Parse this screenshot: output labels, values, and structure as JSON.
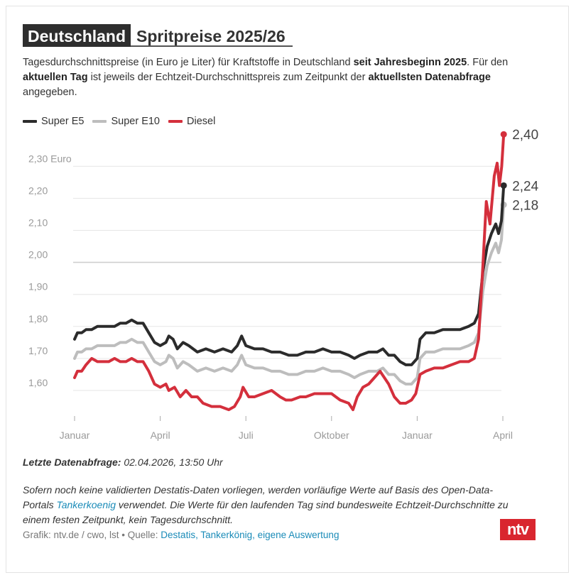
{
  "header": {
    "title_highlight": "Deutschland",
    "title_rest": "Spritpreise 2025/26"
  },
  "subtitle": {
    "p1": "Tagesdurchschnittspreise (in Euro je Liter) für Kraftstoffe in Deutschland ",
    "b1": "seit Jahresbeginn 2025",
    "p2": ". Für den ",
    "b2": "aktuellen Tag",
    "p3": " ist jeweils der Echtzeit-Durchschnittspreis zum Zeitpunkt der ",
    "b3": "aktuellsten Datenabfrage",
    "p4": " angegeben."
  },
  "colors": {
    "e5": "#2b2b2b",
    "e10": "#bdbdbd",
    "diesel": "#d42f3c",
    "grid": "#e6e6e6",
    "baseline": "#cfcfcf"
  },
  "chart_data": {
    "type": "line",
    "x_unit": "months since January 2025",
    "x_ticks": [
      {
        "x": 0,
        "label": "Januar"
      },
      {
        "x": 3,
        "label": "April"
      },
      {
        "x": 6,
        "label": "Juli"
      },
      {
        "x": 9,
        "label": "Oktober"
      },
      {
        "x": 12,
        "label": "Januar"
      },
      {
        "x": 15,
        "label": "April"
      }
    ],
    "y_ticks": [
      {
        "y": 1.6,
        "label": "1,60"
      },
      {
        "y": 1.7,
        "label": "1,70"
      },
      {
        "y": 1.8,
        "label": "1,80"
      },
      {
        "y": 1.9,
        "label": "1,90"
      },
      {
        "y": 2.0,
        "label": "2,00"
      },
      {
        "y": 2.1,
        "label": "2,10"
      },
      {
        "y": 2.2,
        "label": "2,20"
      },
      {
        "y": 2.3,
        "label": "2,30 Euro"
      }
    ],
    "ylim": [
      1.53,
      2.34
    ],
    "xlim": [
      0,
      15.03
    ],
    "series": [
      {
        "name": "Super E5",
        "color": "#2b2b2b",
        "end_label": "2,24",
        "points": [
          [
            0.0,
            1.76
          ],
          [
            0.1,
            1.78
          ],
          [
            0.25,
            1.78
          ],
          [
            0.4,
            1.79
          ],
          [
            0.6,
            1.79
          ],
          [
            0.8,
            1.8
          ],
          [
            1.0,
            1.8
          ],
          [
            1.2,
            1.8
          ],
          [
            1.4,
            1.8
          ],
          [
            1.6,
            1.81
          ],
          [
            1.8,
            1.81
          ],
          [
            2.0,
            1.82
          ],
          [
            2.2,
            1.81
          ],
          [
            2.4,
            1.81
          ],
          [
            2.6,
            1.78
          ],
          [
            2.8,
            1.75
          ],
          [
            3.0,
            1.74
          ],
          [
            3.2,
            1.75
          ],
          [
            3.3,
            1.77
          ],
          [
            3.45,
            1.76
          ],
          [
            3.6,
            1.73
          ],
          [
            3.8,
            1.75
          ],
          [
            4.0,
            1.74
          ],
          [
            4.3,
            1.72
          ],
          [
            4.6,
            1.73
          ],
          [
            4.9,
            1.72
          ],
          [
            5.2,
            1.73
          ],
          [
            5.5,
            1.72
          ],
          [
            5.7,
            1.74
          ],
          [
            5.85,
            1.77
          ],
          [
            6.0,
            1.74
          ],
          [
            6.3,
            1.73
          ],
          [
            6.6,
            1.73
          ],
          [
            6.9,
            1.72
          ],
          [
            7.2,
            1.72
          ],
          [
            7.5,
            1.71
          ],
          [
            7.8,
            1.71
          ],
          [
            8.1,
            1.72
          ],
          [
            8.4,
            1.72
          ],
          [
            8.7,
            1.73
          ],
          [
            9.0,
            1.72
          ],
          [
            9.3,
            1.72
          ],
          [
            9.6,
            1.71
          ],
          [
            9.8,
            1.7
          ],
          [
            10.0,
            1.71
          ],
          [
            10.3,
            1.72
          ],
          [
            10.6,
            1.72
          ],
          [
            10.8,
            1.73
          ],
          [
            11.0,
            1.71
          ],
          [
            11.2,
            1.71
          ],
          [
            11.4,
            1.69
          ],
          [
            11.6,
            1.68
          ],
          [
            11.8,
            1.68
          ],
          [
            12.0,
            1.7
          ],
          [
            12.1,
            1.76
          ],
          [
            12.3,
            1.78
          ],
          [
            12.6,
            1.78
          ],
          [
            12.9,
            1.79
          ],
          [
            13.2,
            1.79
          ],
          [
            13.5,
            1.79
          ],
          [
            13.8,
            1.8
          ],
          [
            14.0,
            1.81
          ],
          [
            14.15,
            1.84
          ],
          [
            14.3,
            1.97
          ],
          [
            14.45,
            2.05
          ],
          [
            14.6,
            2.09
          ],
          [
            14.75,
            2.12
          ],
          [
            14.85,
            2.09
          ],
          [
            14.95,
            2.13
          ],
          [
            15.03,
            2.24
          ]
        ]
      },
      {
        "name": "Super E10",
        "color": "#bdbdbd",
        "end_label": "2,18",
        "points": [
          [
            0.0,
            1.7
          ],
          [
            0.1,
            1.72
          ],
          [
            0.25,
            1.72
          ],
          [
            0.4,
            1.73
          ],
          [
            0.6,
            1.73
          ],
          [
            0.8,
            1.74
          ],
          [
            1.0,
            1.74
          ],
          [
            1.2,
            1.74
          ],
          [
            1.4,
            1.74
          ],
          [
            1.6,
            1.75
          ],
          [
            1.8,
            1.75
          ],
          [
            2.0,
            1.76
          ],
          [
            2.2,
            1.75
          ],
          [
            2.4,
            1.75
          ],
          [
            2.6,
            1.72
          ],
          [
            2.8,
            1.69
          ],
          [
            3.0,
            1.68
          ],
          [
            3.2,
            1.69
          ],
          [
            3.3,
            1.71
          ],
          [
            3.45,
            1.7
          ],
          [
            3.6,
            1.67
          ],
          [
            3.8,
            1.69
          ],
          [
            4.0,
            1.68
          ],
          [
            4.3,
            1.66
          ],
          [
            4.6,
            1.67
          ],
          [
            4.9,
            1.66
          ],
          [
            5.2,
            1.67
          ],
          [
            5.5,
            1.66
          ],
          [
            5.7,
            1.68
          ],
          [
            5.85,
            1.71
          ],
          [
            6.0,
            1.68
          ],
          [
            6.3,
            1.67
          ],
          [
            6.6,
            1.67
          ],
          [
            6.9,
            1.66
          ],
          [
            7.2,
            1.66
          ],
          [
            7.5,
            1.65
          ],
          [
            7.8,
            1.65
          ],
          [
            8.1,
            1.66
          ],
          [
            8.4,
            1.66
          ],
          [
            8.7,
            1.67
          ],
          [
            9.0,
            1.66
          ],
          [
            9.3,
            1.66
          ],
          [
            9.6,
            1.65
          ],
          [
            9.8,
            1.64
          ],
          [
            10.0,
            1.65
          ],
          [
            10.3,
            1.66
          ],
          [
            10.6,
            1.66
          ],
          [
            10.8,
            1.67
          ],
          [
            11.0,
            1.65
          ],
          [
            11.2,
            1.65
          ],
          [
            11.4,
            1.63
          ],
          [
            11.6,
            1.62
          ],
          [
            11.8,
            1.62
          ],
          [
            12.0,
            1.64
          ],
          [
            12.1,
            1.7
          ],
          [
            12.3,
            1.72
          ],
          [
            12.6,
            1.72
          ],
          [
            12.9,
            1.73
          ],
          [
            13.2,
            1.73
          ],
          [
            13.5,
            1.73
          ],
          [
            13.8,
            1.74
          ],
          [
            14.0,
            1.75
          ],
          [
            14.15,
            1.78
          ],
          [
            14.3,
            1.91
          ],
          [
            14.45,
            1.99
          ],
          [
            14.6,
            2.03
          ],
          [
            14.75,
            2.06
          ],
          [
            14.85,
            2.03
          ],
          [
            14.95,
            2.07
          ],
          [
            15.03,
            2.18
          ]
        ]
      },
      {
        "name": "Diesel",
        "color": "#d42f3c",
        "end_label": "2,40",
        "points": [
          [
            0.0,
            1.64
          ],
          [
            0.1,
            1.66
          ],
          [
            0.25,
            1.66
          ],
          [
            0.4,
            1.68
          ],
          [
            0.6,
            1.7
          ],
          [
            0.8,
            1.69
          ],
          [
            1.0,
            1.69
          ],
          [
            1.2,
            1.69
          ],
          [
            1.4,
            1.7
          ],
          [
            1.6,
            1.69
          ],
          [
            1.8,
            1.69
          ],
          [
            2.0,
            1.7
          ],
          [
            2.2,
            1.69
          ],
          [
            2.4,
            1.69
          ],
          [
            2.6,
            1.66
          ],
          [
            2.8,
            1.62
          ],
          [
            3.0,
            1.61
          ],
          [
            3.2,
            1.62
          ],
          [
            3.3,
            1.6
          ],
          [
            3.5,
            1.61
          ],
          [
            3.7,
            1.58
          ],
          [
            3.9,
            1.6
          ],
          [
            4.1,
            1.58
          ],
          [
            4.3,
            1.58
          ],
          [
            4.5,
            1.56
          ],
          [
            4.8,
            1.55
          ],
          [
            5.1,
            1.55
          ],
          [
            5.4,
            1.54
          ],
          [
            5.6,
            1.55
          ],
          [
            5.8,
            1.58
          ],
          [
            5.9,
            1.61
          ],
          [
            6.1,
            1.58
          ],
          [
            6.3,
            1.58
          ],
          [
            6.6,
            1.59
          ],
          [
            6.9,
            1.6
          ],
          [
            7.2,
            1.58
          ],
          [
            7.4,
            1.57
          ],
          [
            7.6,
            1.57
          ],
          [
            7.9,
            1.58
          ],
          [
            8.1,
            1.58
          ],
          [
            8.4,
            1.59
          ],
          [
            8.7,
            1.59
          ],
          [
            9.0,
            1.59
          ],
          [
            9.3,
            1.57
          ],
          [
            9.6,
            1.56
          ],
          [
            9.75,
            1.54
          ],
          [
            9.9,
            1.58
          ],
          [
            10.1,
            1.61
          ],
          [
            10.3,
            1.62
          ],
          [
            10.5,
            1.64
          ],
          [
            10.7,
            1.66
          ],
          [
            10.85,
            1.64
          ],
          [
            11.0,
            1.62
          ],
          [
            11.2,
            1.58
          ],
          [
            11.4,
            1.56
          ],
          [
            11.6,
            1.56
          ],
          [
            11.8,
            1.57
          ],
          [
            11.95,
            1.59
          ],
          [
            12.1,
            1.65
          ],
          [
            12.3,
            1.66
          ],
          [
            12.6,
            1.67
          ],
          [
            12.9,
            1.67
          ],
          [
            13.2,
            1.68
          ],
          [
            13.5,
            1.69
          ],
          [
            13.8,
            1.69
          ],
          [
            14.0,
            1.7
          ],
          [
            14.15,
            1.76
          ],
          [
            14.3,
            1.99
          ],
          [
            14.42,
            2.19
          ],
          [
            14.55,
            2.12
          ],
          [
            14.7,
            2.27
          ],
          [
            14.8,
            2.31
          ],
          [
            14.88,
            2.24
          ],
          [
            14.96,
            2.3
          ],
          [
            15.03,
            2.4
          ]
        ]
      }
    ]
  },
  "update": {
    "label": "Letzte Datenabfrage:",
    "value": " 02.04.2026, 13:50 Uhr"
  },
  "note": {
    "p1": "Sofern noch keine validierten Destatis-Daten vorliegen, werden vorläufige Werte auf Basis des Open-Data-Portals ",
    "link": "Tankerkoenig",
    "p2": " verwendet. Die Werte für den laufenden Tag sind bundesweite Echtzeit-Durchschnitte zu einem festen Zeitpunkt, kein Tagesdurchschnitt."
  },
  "credit": {
    "prefix": "Grafik: ntv.de / cwo, lst • Quelle: ",
    "sources": "Destatis, Tankerkönig, eigene Auswertung"
  },
  "logo_text": "ntv"
}
